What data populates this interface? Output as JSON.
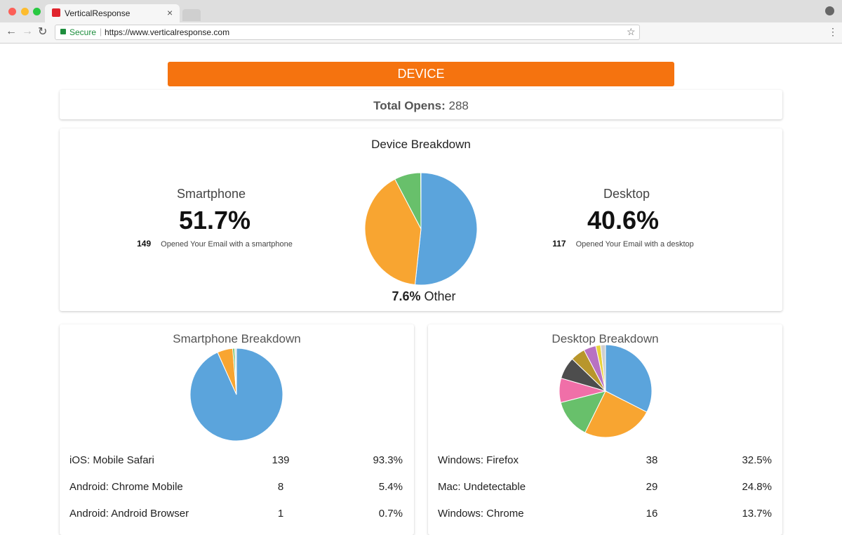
{
  "browser": {
    "tab_title": "VerticalResponse",
    "secure": "Secure",
    "url": "https://www.verticalresponse.com"
  },
  "header": "DEVICE",
  "total_opens": {
    "label": "Total Opens:",
    "value": 288
  },
  "device_breakdown": {
    "title": "Device Breakdown",
    "segments": [
      {
        "name": "Smartphone",
        "value": 51.7,
        "label": "51.7%",
        "count": 149,
        "caption": "Opened Your Email with a smartphone",
        "color": "#5ba4dc"
      },
      {
        "name": "Desktop",
        "value": 40.6,
        "label": "40.6%",
        "count": 117,
        "caption": "Opened Your Email with a desktop",
        "color": "#f8a531"
      },
      {
        "name": "Other",
        "value": 7.6,
        "label": "7.6%",
        "color": "#68c06b"
      }
    ]
  },
  "smartphone_breakdown": {
    "title": "Smartphone Breakdown",
    "rows": [
      {
        "name": "iOS: Mobile Safari",
        "count": 139,
        "value": 93.3,
        "label": "93.3%",
        "color": "#5ba4dc"
      },
      {
        "name": "Android: Chrome Mobile",
        "count": 8,
        "value": 5.4,
        "label": "5.4%",
        "color": "#f8a531"
      },
      {
        "name": "Android: Android Browser",
        "count": 1,
        "value": 0.7,
        "label": "0.7%",
        "color": "#68c06b"
      }
    ],
    "unlabeled_slices": [
      {
        "value": 0.6,
        "color": "#dddddd"
      }
    ]
  },
  "desktop_breakdown": {
    "title": "Desktop Breakdown",
    "rows": [
      {
        "name": "Windows: Firefox",
        "count": 38,
        "value": 32.5,
        "label": "32.5%",
        "color": "#5ba4dc"
      },
      {
        "name": "Mac: Undetectable",
        "count": 29,
        "value": 24.8,
        "label": "24.8%",
        "color": "#f8a531"
      },
      {
        "name": "Windows: Chrome",
        "count": 16,
        "value": 13.7,
        "label": "13.7%",
        "color": "#68c06b"
      }
    ],
    "unlabeled_slices": [
      {
        "value": 8.5,
        "color": "#f06fa8"
      },
      {
        "value": 7.7,
        "color": "#4d4d4d"
      },
      {
        "value": 5.1,
        "color": "#b8962c"
      },
      {
        "value": 4.3,
        "color": "#b872c2"
      },
      {
        "value": 1.7,
        "color": "#e8d23a"
      },
      {
        "value": 1.7,
        "color": "#cfcfcf"
      }
    ]
  }
}
